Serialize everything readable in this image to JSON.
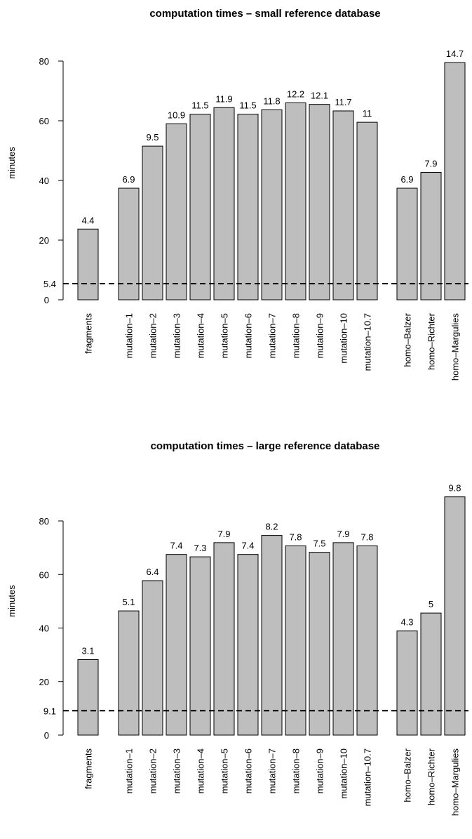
{
  "chart_data": [
    {
      "type": "bar",
      "title": "computation times – small reference database",
      "ylabel": "minutes",
      "ylim": [
        0,
        80
      ],
      "yticks": [
        "0",
        "20",
        "40",
        "60",
        "80"
      ],
      "categories": [
        "fragments",
        "mutation–1",
        "mutation–2",
        "mutation–3",
        "mutation–4",
        "mutation–5",
        "mutation–6",
        "mutation–7",
        "mutation–8",
        "mutation–9",
        "mutation–10",
        "mutation–10.7",
        "homo–Balzer",
        "homo–Richter",
        "homo–Margulies"
      ],
      "values": [
        23.7,
        37.4,
        51.5,
        59.0,
        62.2,
        64.4,
        62.2,
        63.7,
        66.0,
        65.5,
        63.3,
        59.5,
        37.4,
        42.7,
        79.5
      ],
      "data_labels": [
        "4.4",
        "6.9",
        "9.5",
        "10.9",
        "11.5",
        "11.9",
        "11.5",
        "11.8",
        "12.2",
        "12.1",
        "11.7",
        "11",
        "6.9",
        "7.9",
        "14.7"
      ],
      "reference_line": {
        "value": 5.4,
        "label": "5.4",
        "style": "dashed"
      },
      "grid": false
    },
    {
      "type": "bar",
      "title": "computation times – large reference database",
      "ylabel": "minutes",
      "ylim": [
        0,
        80
      ],
      "yticks": [
        "0",
        "20",
        "40",
        "60",
        "80"
      ],
      "categories": [
        "fragments",
        "mutation–1",
        "mutation–2",
        "mutation–3",
        "mutation–4",
        "mutation–5",
        "mutation–6",
        "mutation–7",
        "mutation–8",
        "mutation–9",
        "mutation–10",
        "mutation–10.7",
        "homo–Balzer",
        "homo–Richter",
        "homo–Margulies"
      ],
      "values": [
        28.2,
        46.4,
        57.7,
        67.5,
        66.6,
        71.9,
        67.5,
        74.6,
        70.7,
        68.3,
        71.9,
        70.7,
        38.9,
        45.6,
        89.0
      ],
      "data_labels": [
        "3.1",
        "5.1",
        "6.4",
        "7.4",
        "7.3",
        "7.9",
        "7.4",
        "8.2",
        "7.8",
        "7.5",
        "7.9",
        "7.8",
        "4.3",
        "5",
        "9.8"
      ],
      "reference_line": {
        "value": 9.1,
        "label": "9.1",
        "style": "dashed"
      },
      "grid": false
    }
  ]
}
